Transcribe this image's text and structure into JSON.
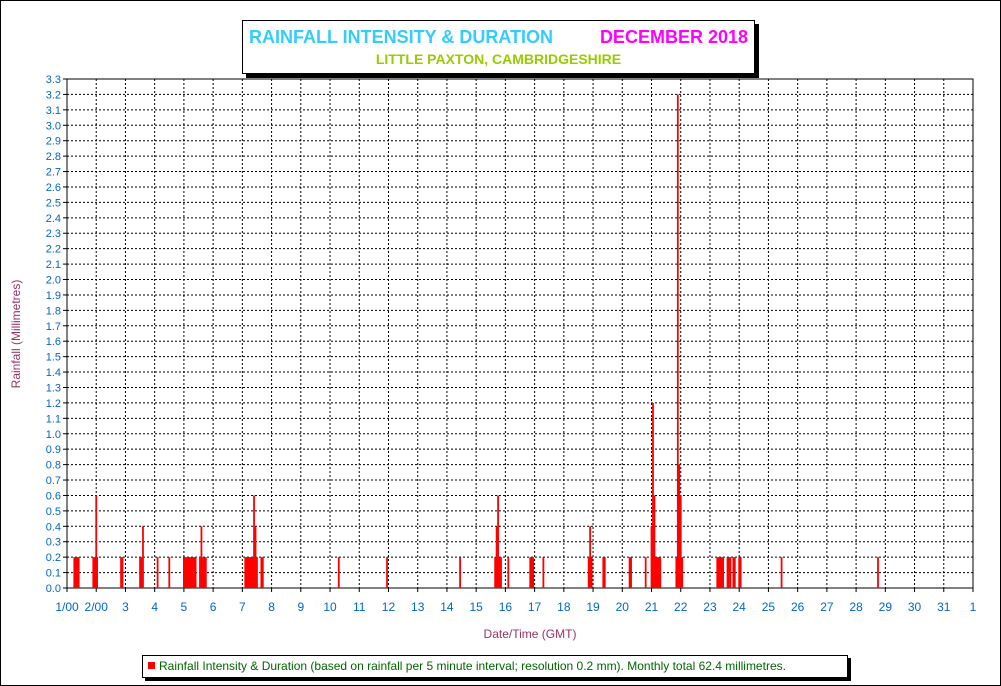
{
  "chart_data": {
    "type": "bar",
    "title": "RAINFALL INTENSITY & DURATION",
    "title_month": "DECEMBER 2018",
    "subtitle": "LITTLE PAXTON, CAMBRIDGESHIRE",
    "xlabel": "Date/Time (GMT)",
    "ylabel": "Rainfall (Millimetres)",
    "ylim": [
      0,
      3.3
    ],
    "xlim": [
      1,
      32
    ],
    "grid": true,
    "legend_position": "bottom",
    "legend_label": "Rainfall Intensity & Duration (based on rainfall per 5 minute interval; resolution 0.2 mm). Monthly total 62.4 millimetres.",
    "y_ticks": [
      "0.0",
      "0.1",
      "0.2",
      "0.3",
      "0.4",
      "0.5",
      "0.6",
      "0.7",
      "0.8",
      "0.9",
      "1.0",
      "1.1",
      "1.2",
      "1.3",
      "1.4",
      "1.5",
      "1.6",
      "1.7",
      "1.8",
      "1.9",
      "2.0",
      "2.1",
      "2.2",
      "2.3",
      "2.4",
      "2.5",
      "2.6",
      "2.7",
      "2.8",
      "2.9",
      "3.0",
      "3.1",
      "3.2",
      "3.3"
    ],
    "x_ticks": [
      "1/00",
      "2/00",
      "3",
      "4",
      "5",
      "6",
      "7",
      "8",
      "9",
      "10",
      "11",
      "12",
      "13",
      "14",
      "15",
      "16",
      "17",
      "18",
      "19",
      "20",
      "21",
      "22",
      "23",
      "24",
      "25",
      "26",
      "27",
      "28",
      "29",
      "30",
      "31",
      "1"
    ],
    "series_color": "#ff0000",
    "x_unit": "day of month (fractional)",
    "series": [
      {
        "name": "Rainfall Intensity & Duration",
        "points": [
          [
            1.25,
            0.2
          ],
          [
            1.3,
            0.2
          ],
          [
            1.35,
            0.2
          ],
          [
            1.4,
            0.2
          ],
          [
            1.9,
            0.2
          ],
          [
            1.95,
            0.2
          ],
          [
            2.0,
            0.6
          ],
          [
            2.03,
            0.2
          ],
          [
            2.85,
            0.2
          ],
          [
            2.9,
            0.2
          ],
          [
            3.5,
            0.2
          ],
          [
            3.55,
            0.2
          ],
          [
            3.6,
            0.4
          ],
          [
            4.1,
            0.2
          ],
          [
            4.5,
            0.2
          ],
          [
            5.0,
            0.2
          ],
          [
            5.05,
            0.2
          ],
          [
            5.1,
            0.2
          ],
          [
            5.15,
            0.2
          ],
          [
            5.2,
            0.2
          ],
          [
            5.25,
            0.2
          ],
          [
            5.3,
            0.2
          ],
          [
            5.35,
            0.2
          ],
          [
            5.4,
            0.2
          ],
          [
            5.55,
            0.2
          ],
          [
            5.6,
            0.4
          ],
          [
            5.65,
            0.2
          ],
          [
            5.7,
            0.2
          ],
          [
            5.75,
            0.2
          ],
          [
            7.1,
            0.2
          ],
          [
            7.15,
            0.2
          ],
          [
            7.2,
            0.2
          ],
          [
            7.25,
            0.2
          ],
          [
            7.3,
            0.2
          ],
          [
            7.35,
            0.2
          ],
          [
            7.4,
            0.6
          ],
          [
            7.45,
            0.4
          ],
          [
            7.5,
            0.2
          ],
          [
            7.65,
            0.2
          ],
          [
            7.7,
            0.2
          ],
          [
            10.3,
            0.2
          ],
          [
            11.95,
            0.2
          ],
          [
            14.45,
            0.2
          ],
          [
            15.65,
            0.2
          ],
          [
            15.7,
            0.4
          ],
          [
            15.75,
            0.6
          ],
          [
            15.8,
            0.2
          ],
          [
            15.85,
            0.2
          ],
          [
            16.1,
            0.2
          ],
          [
            16.85,
            0.2
          ],
          [
            16.9,
            0.2
          ],
          [
            16.95,
            0.2
          ],
          [
            17.3,
            0.2
          ],
          [
            18.85,
            0.2
          ],
          [
            18.9,
            0.4
          ],
          [
            18.95,
            0.2
          ],
          [
            19.35,
            0.2
          ],
          [
            19.4,
            0.2
          ],
          [
            20.25,
            0.2
          ],
          [
            20.3,
            0.2
          ],
          [
            20.8,
            0.2
          ],
          [
            21.0,
            0.4
          ],
          [
            21.05,
            1.2
          ],
          [
            21.1,
            0.6
          ],
          [
            21.15,
            0.2
          ],
          [
            21.2,
            0.2
          ],
          [
            21.25,
            0.2
          ],
          [
            21.3,
            0.2
          ],
          [
            21.85,
            0.2
          ],
          [
            21.9,
            3.2
          ],
          [
            21.95,
            0.8
          ],
          [
            22.0,
            0.6
          ],
          [
            22.05,
            0.2
          ],
          [
            23.25,
            0.2
          ],
          [
            23.3,
            0.2
          ],
          [
            23.35,
            0.2
          ],
          [
            23.4,
            0.2
          ],
          [
            23.45,
            0.2
          ],
          [
            23.6,
            0.2
          ],
          [
            23.65,
            0.2
          ],
          [
            23.7,
            0.2
          ],
          [
            23.8,
            0.2
          ],
          [
            23.85,
            0.2
          ],
          [
            24.0,
            0.2
          ],
          [
            24.05,
            0.2
          ],
          [
            25.45,
            0.2
          ],
          [
            28.75,
            0.2
          ]
        ]
      }
    ]
  }
}
